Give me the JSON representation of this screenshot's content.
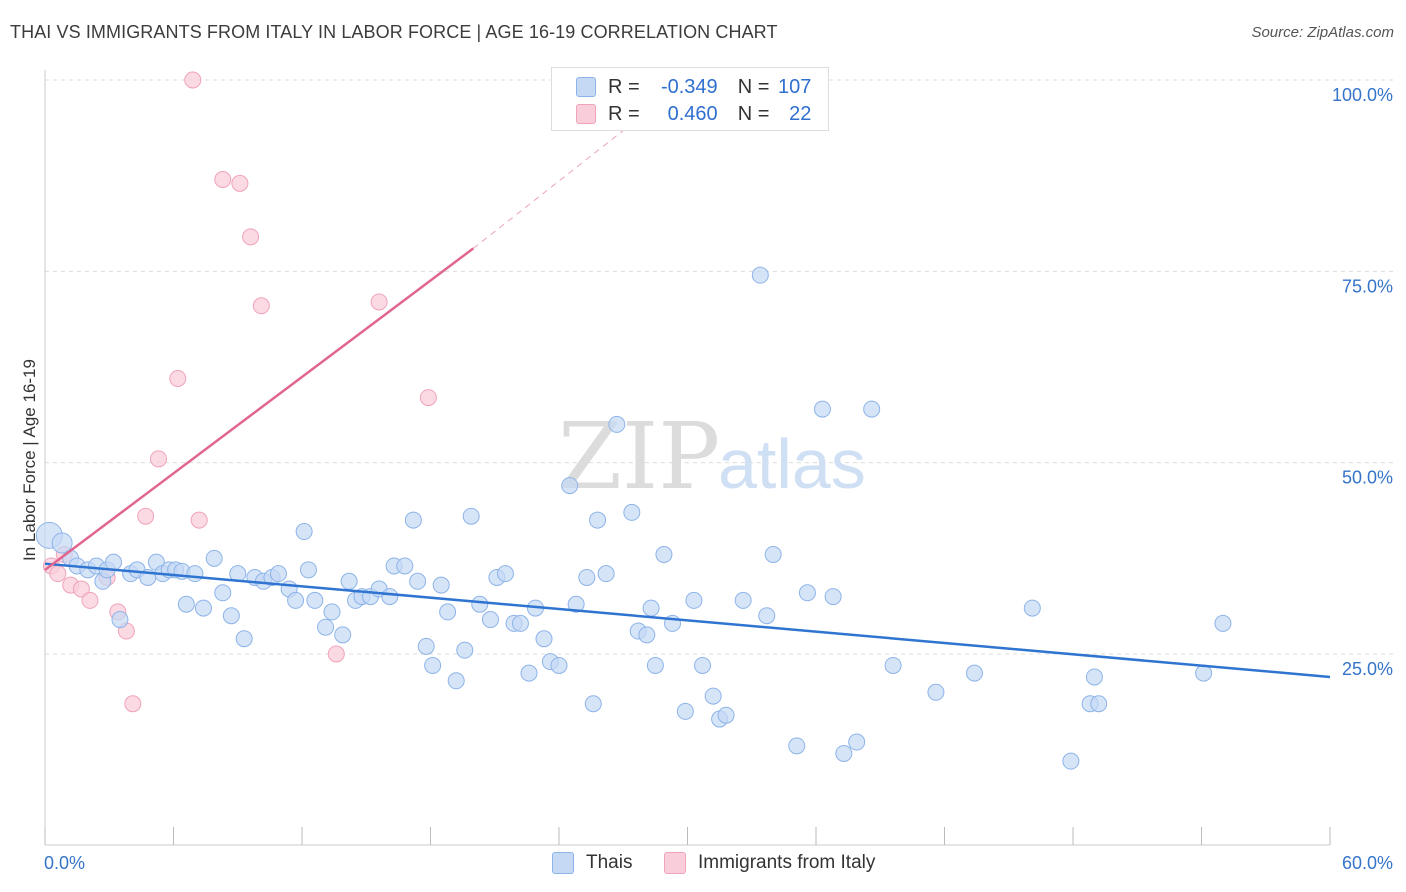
{
  "title": "THAI VS IMMIGRANTS FROM ITALY IN LABOR FORCE | AGE 16-19 CORRELATION CHART",
  "source": "Source: ZipAtlas.com",
  "watermark": {
    "zip": "ZIP",
    "atlas": "atlas"
  },
  "legend_stats": {
    "thais": {
      "r_label": "R =",
      "r_value": "-0.349",
      "n_label": "N =",
      "n_value": "107"
    },
    "italy": {
      "r_label": "R =",
      "r_value": "0.460",
      "n_label": "N =",
      "n_value": "22"
    }
  },
  "colors": {
    "thais_fill": "#c5d9f5",
    "thais_stroke": "#8db4e8",
    "thais_line": "#2f74d0",
    "italy_fill": "#f9cdd9",
    "italy_stroke": "#f0a3b9",
    "italy_line": "#e0668f",
    "tick_label": "#3574c9",
    "grid": "#dcdcdc"
  },
  "chart_data": {
    "type": "scatter",
    "title": "THAI VS IMMIGRANTS FROM ITALY IN LABOR FORCE | AGE 16-19 CORRELATION CHART",
    "xlabel": "",
    "ylabel": "In Labor Force | Age 16-19",
    "xlim": [
      0,
      60
    ],
    "ylim": [
      0,
      105
    ],
    "x_tick_labels": [
      "0.0%",
      "60.0%"
    ],
    "y_ticks": [
      25,
      50,
      75,
      100
    ],
    "y_tick_labels": [
      "25.0%",
      "50.0%",
      "75.0%",
      "100.0%"
    ],
    "grid": true,
    "legend_position": "top-center",
    "series": [
      {
        "name": "Thais",
        "points": [
          [
            0.2,
            40.5
          ],
          [
            0.8,
            39.5
          ],
          [
            1.2,
            37.5
          ],
          [
            1.5,
            36.5
          ],
          [
            2.0,
            36.0
          ],
          [
            2.4,
            36.5
          ],
          [
            2.7,
            34.5
          ],
          [
            2.9,
            36.0
          ],
          [
            3.2,
            37.0
          ],
          [
            3.5,
            29.5
          ],
          [
            4.0,
            35.5
          ],
          [
            4.3,
            36.0
          ],
          [
            4.8,
            35.0
          ],
          [
            5.2,
            37.0
          ],
          [
            5.5,
            35.5
          ],
          [
            5.8,
            36.0
          ],
          [
            6.1,
            36.0
          ],
          [
            6.4,
            35.8
          ],
          [
            6.6,
            31.5
          ],
          [
            7.0,
            35.5
          ],
          [
            7.4,
            31.0
          ],
          [
            7.9,
            37.5
          ],
          [
            8.3,
            33.0
          ],
          [
            8.7,
            30.0
          ],
          [
            9.0,
            35.5
          ],
          [
            9.3,
            27.0
          ],
          [
            9.8,
            35.0
          ],
          [
            10.2,
            34.5
          ],
          [
            10.6,
            35.0
          ],
          [
            10.9,
            35.5
          ],
          [
            11.4,
            33.5
          ],
          [
            11.7,
            32.0
          ],
          [
            12.1,
            41.0
          ],
          [
            12.3,
            36.0
          ],
          [
            12.6,
            32.0
          ],
          [
            13.1,
            28.5
          ],
          [
            13.4,
            30.5
          ],
          [
            13.9,
            27.5
          ],
          [
            14.2,
            34.5
          ],
          [
            14.5,
            32.0
          ],
          [
            14.8,
            32.5
          ],
          [
            15.2,
            32.5
          ],
          [
            15.6,
            33.5
          ],
          [
            16.1,
            32.5
          ],
          [
            16.3,
            36.5
          ],
          [
            16.8,
            36.5
          ],
          [
            17.2,
            42.5
          ],
          [
            17.4,
            34.5
          ],
          [
            17.8,
            26.0
          ],
          [
            18.1,
            23.5
          ],
          [
            18.5,
            34.0
          ],
          [
            18.8,
            30.5
          ],
          [
            19.2,
            21.5
          ],
          [
            19.6,
            25.5
          ],
          [
            19.9,
            43.0
          ],
          [
            20.3,
            31.5
          ],
          [
            20.8,
            29.5
          ],
          [
            21.1,
            35.0
          ],
          [
            21.5,
            35.5
          ],
          [
            21.9,
            29.0
          ],
          [
            22.2,
            29.0
          ],
          [
            22.6,
            22.5
          ],
          [
            22.9,
            31.0
          ],
          [
            23.3,
            27.0
          ],
          [
            23.6,
            24.0
          ],
          [
            24.0,
            23.5
          ],
          [
            24.5,
            47.0
          ],
          [
            24.8,
            31.5
          ],
          [
            25.3,
            35.0
          ],
          [
            25.6,
            18.5
          ],
          [
            25.8,
            42.5
          ],
          [
            26.2,
            35.5
          ],
          [
            26.7,
            55.0
          ],
          [
            27.4,
            43.5
          ],
          [
            27.7,
            28.0
          ],
          [
            28.1,
            27.5
          ],
          [
            28.3,
            31.0
          ],
          [
            28.5,
            23.5
          ],
          [
            28.9,
            38.0
          ],
          [
            29.3,
            29.0
          ],
          [
            29.9,
            17.5
          ],
          [
            30.3,
            32.0
          ],
          [
            30.7,
            23.5
          ],
          [
            31.2,
            19.5
          ],
          [
            31.5,
            16.5
          ],
          [
            31.8,
            17.0
          ],
          [
            32.6,
            32.0
          ],
          [
            33.4,
            74.5
          ],
          [
            33.7,
            30.0
          ],
          [
            34.0,
            38.0
          ],
          [
            35.1,
            13.0
          ],
          [
            35.6,
            33.0
          ],
          [
            36.3,
            57.0
          ],
          [
            36.8,
            32.5
          ],
          [
            37.3,
            12.0
          ],
          [
            37.9,
            13.5
          ],
          [
            38.6,
            57.0
          ],
          [
            39.6,
            23.5
          ],
          [
            41.6,
            20.0
          ],
          [
            43.4,
            22.5
          ],
          [
            46.1,
            31.0
          ],
          [
            47.9,
            11.0
          ],
          [
            48.8,
            18.5
          ],
          [
            49.2,
            18.5
          ],
          [
            49.0,
            22.0
          ],
          [
            54.1,
            22.5
          ],
          [
            55.0,
            29.0
          ]
        ]
      },
      {
        "name": "Immigrants from Italy",
        "points": [
          [
            0.3,
            36.5
          ],
          [
            0.6,
            35.5
          ],
          [
            0.9,
            38.0
          ],
          [
            1.2,
            34.0
          ],
          [
            1.7,
            33.5
          ],
          [
            2.1,
            32.0
          ],
          [
            2.9,
            35.0
          ],
          [
            3.4,
            30.5
          ],
          [
            3.8,
            28.0
          ],
          [
            4.1,
            18.5
          ],
          [
            4.7,
            43.0
          ],
          [
            5.3,
            50.5
          ],
          [
            6.2,
            61.0
          ],
          [
            6.9,
            100.0
          ],
          [
            7.2,
            42.5
          ],
          [
            8.3,
            87.0
          ],
          [
            9.1,
            86.5
          ],
          [
            9.6,
            79.5
          ],
          [
            10.1,
            70.5
          ],
          [
            13.6,
            25.0
          ],
          [
            15.6,
            71.0
          ],
          [
            17.9,
            58.5
          ]
        ]
      }
    ],
    "trend_lines": [
      {
        "series": "Thais",
        "x": [
          0,
          60
        ],
        "y": [
          36.8,
          22.0
        ],
        "style": "solid"
      },
      {
        "series": "Immigrants from Italy",
        "x": [
          0,
          20
        ],
        "y": [
          36.0,
          78.0
        ],
        "style": "solid"
      },
      {
        "series": "Immigrants from Italy",
        "x": [
          20,
          27.5
        ],
        "y": [
          78.0,
          94.5
        ],
        "style": "dashed"
      }
    ]
  }
}
